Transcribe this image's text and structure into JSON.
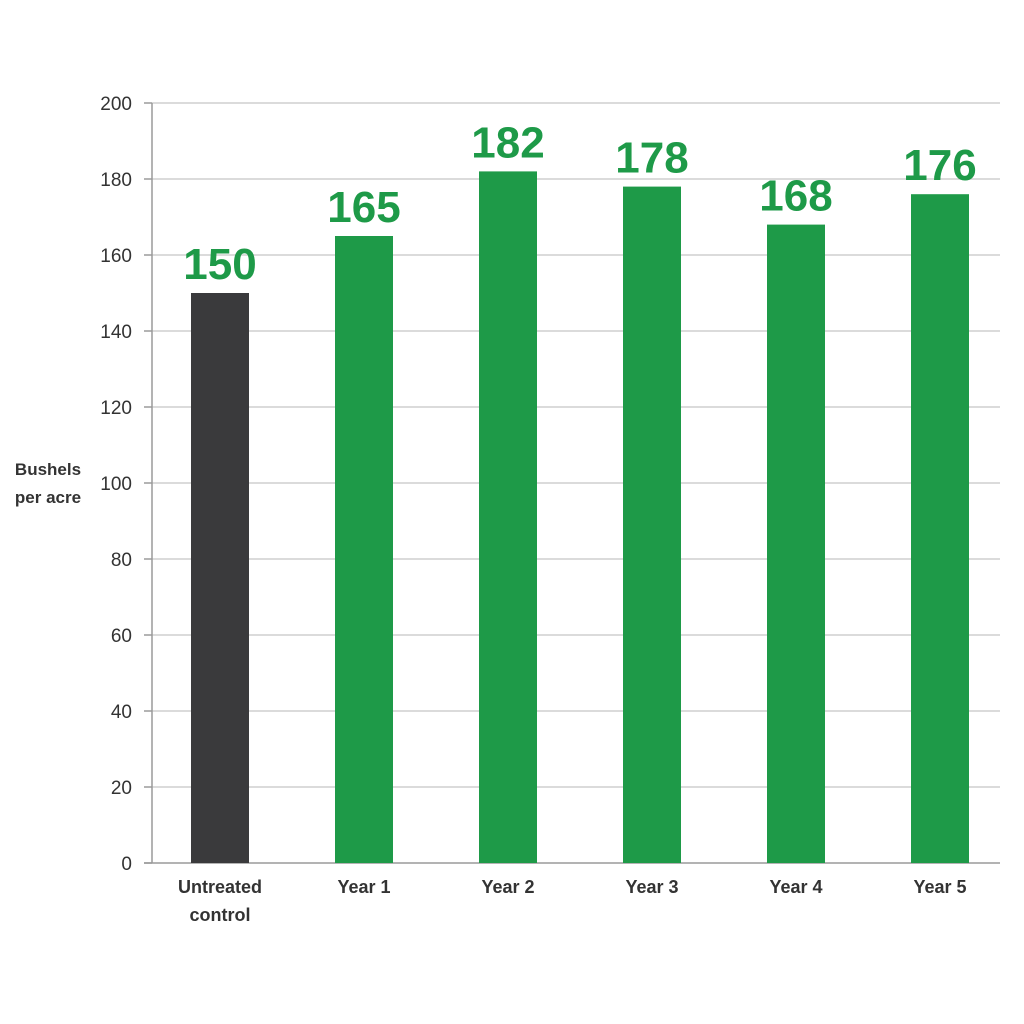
{
  "chart_data": {
    "type": "bar",
    "categories": [
      "Untreated control",
      "Year 1",
      "Year 2",
      "Year 3",
      "Year 4",
      "Year 5"
    ],
    "category_lines": [
      [
        "Untreated",
        "control"
      ],
      [
        "Year 1"
      ],
      [
        "Year 2"
      ],
      [
        "Year 3"
      ],
      [
        "Year 4"
      ],
      [
        "Year 5"
      ]
    ],
    "values": [
      150,
      165,
      182,
      178,
      168,
      176
    ],
    "data_labels": [
      "150",
      "165",
      "182",
      "178",
      "168",
      "176"
    ],
    "title": "",
    "xlabel": "",
    "ylabel": "Bushels per acre",
    "ylabel_lines": [
      "Bushels",
      "per acre"
    ],
    "ylim": [
      0,
      200
    ],
    "yticks": [
      0,
      20,
      40,
      60,
      80,
      100,
      120,
      140,
      160,
      180,
      200
    ],
    "grid": true,
    "legend": "none",
    "colors": {
      "control": "#3a3a3c",
      "treated": "#1e9a48",
      "grid": "#cfcfcf",
      "axis": "#9a9a9a",
      "text": "#333333"
    }
  }
}
